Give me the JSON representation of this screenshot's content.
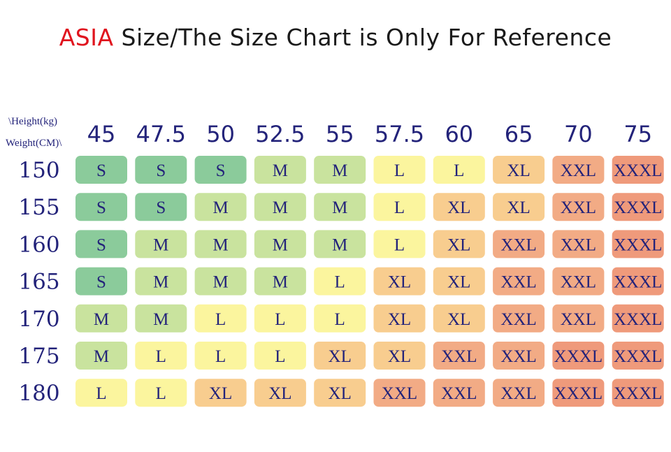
{
  "title": {
    "accent": "ASIA",
    "rest": " Size/The Size Chart is Only For Reference"
  },
  "corner": {
    "line1": "\\Height(kg)",
    "line2": "Weight(CM)\\"
  },
  "colors": {
    "accent": "#e0141e",
    "text": "#23237a",
    "S": "#8bcb9b",
    "M": "#c9e39e",
    "L": "#fbf59e",
    "XL": "#f8cd8f",
    "XXL": "#f2ab85",
    "XXXL": "#ef9a7b"
  },
  "chart_data": {
    "type": "table",
    "columns": [
      "45",
      "47.5",
      "50",
      "52.5",
      "55",
      "57.5",
      "60",
      "65",
      "70",
      "75"
    ],
    "rows": [
      {
        "label": "150",
        "cells": [
          "S",
          "S",
          "S",
          "M",
          "M",
          "L",
          "L",
          "XL",
          "XXL",
          "XXXL"
        ]
      },
      {
        "label": "155",
        "cells": [
          "S",
          "S",
          "M",
          "M",
          "M",
          "L",
          "XL",
          "XL",
          "XXL",
          "XXXL"
        ]
      },
      {
        "label": "160",
        "cells": [
          "S",
          "M",
          "M",
          "M",
          "M",
          "L",
          "XL",
          "XXL",
          "XXL",
          "XXXL"
        ]
      },
      {
        "label": "165",
        "cells": [
          "S",
          "M",
          "M",
          "M",
          "L",
          "XL",
          "XL",
          "XXL",
          "XXL",
          "XXXL"
        ]
      },
      {
        "label": "170",
        "cells": [
          "M",
          "M",
          "L",
          "L",
          "L",
          "XL",
          "XL",
          "XXL",
          "XXL",
          "XXXL"
        ]
      },
      {
        "label": "175",
        "cells": [
          "M",
          "L",
          "L",
          "L",
          "XL",
          "XL",
          "XXL",
          "XXL",
          "XXXL",
          "XXXL"
        ]
      },
      {
        "label": "180",
        "cells": [
          "L",
          "L",
          "XL",
          "XL",
          "XL",
          "XXL",
          "XXL",
          "XXL",
          "XXXL",
          "XXXL"
        ]
      }
    ]
  }
}
